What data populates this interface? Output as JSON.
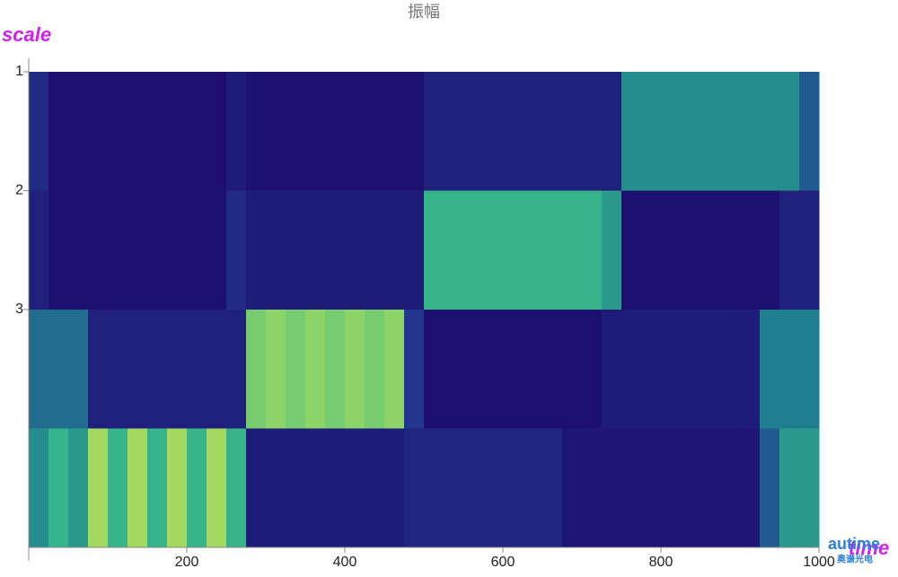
{
  "chart_data": {
    "type": "heatmap",
    "title": "振幅",
    "ylabel": "scale",
    "xlabel": "time",
    "watermark": "autime",
    "watermark_sub": "奥谱光电",
    "xlim": [
      0,
      1000
    ],
    "xticks": [
      200,
      400,
      600,
      800,
      1000
    ],
    "ylim": [
      5,
      1
    ],
    "yticks": [
      1,
      2,
      3
    ],
    "scales": [
      1,
      2,
      3,
      4
    ],
    "bins": [
      0,
      25,
      50,
      75,
      100,
      125,
      150,
      175,
      200,
      225,
      250,
      275,
      300,
      325,
      350,
      375,
      400,
      425,
      450,
      475,
      500,
      525,
      550,
      575,
      600,
      625,
      650,
      675,
      700,
      725,
      750,
      775,
      800,
      825,
      850,
      875,
      900,
      925,
      950,
      975,
      1000
    ],
    "zlim": [
      0,
      1
    ],
    "colorscale": [
      "#1c0b6b",
      "#22368e",
      "#1f7f8f",
      "#35b589",
      "#8dd468",
      "#e8e84a"
    ],
    "z": [
      [
        0.15,
        0.02,
        0.02,
        0.02,
        0.02,
        0.02,
        0.02,
        0.02,
        0.02,
        0.02,
        0.08,
        0.03,
        0.03,
        0.03,
        0.03,
        0.03,
        0.03,
        0.03,
        0.03,
        0.03,
        0.1,
        0.1,
        0.1,
        0.1,
        0.1,
        0.1,
        0.1,
        0.1,
        0.1,
        0.1,
        0.45,
        0.45,
        0.45,
        0.45,
        0.45,
        0.45,
        0.45,
        0.45,
        0.45,
        0.3
      ],
      [
        0.1,
        0.03,
        0.03,
        0.03,
        0.03,
        0.03,
        0.03,
        0.03,
        0.03,
        0.03,
        0.15,
        0.08,
        0.08,
        0.08,
        0.08,
        0.08,
        0.08,
        0.08,
        0.08,
        0.08,
        0.6,
        0.6,
        0.6,
        0.6,
        0.6,
        0.6,
        0.6,
        0.6,
        0.6,
        0.5,
        0.03,
        0.03,
        0.03,
        0.03,
        0.03,
        0.03,
        0.03,
        0.03,
        0.1,
        0.1
      ],
      [
        0.35,
        0.35,
        0.35,
        0.1,
        0.1,
        0.1,
        0.1,
        0.1,
        0.1,
        0.1,
        0.1,
        0.75,
        0.8,
        0.75,
        0.8,
        0.75,
        0.8,
        0.75,
        0.8,
        0.2,
        0.02,
        0.02,
        0.02,
        0.02,
        0.02,
        0.02,
        0.02,
        0.02,
        0.02,
        0.08,
        0.08,
        0.08,
        0.08,
        0.08,
        0.08,
        0.08,
        0.08,
        0.4,
        0.4,
        0.4
      ],
      [
        0.45,
        0.6,
        0.5,
        0.85,
        0.6,
        0.85,
        0.6,
        0.85,
        0.6,
        0.85,
        0.6,
        0.08,
        0.08,
        0.08,
        0.08,
        0.08,
        0.08,
        0.08,
        0.08,
        0.12,
        0.12,
        0.12,
        0.12,
        0.12,
        0.12,
        0.12,
        0.12,
        0.05,
        0.05,
        0.05,
        0.05,
        0.05,
        0.05,
        0.05,
        0.05,
        0.05,
        0.05,
        0.3,
        0.5,
        0.5
      ]
    ]
  }
}
